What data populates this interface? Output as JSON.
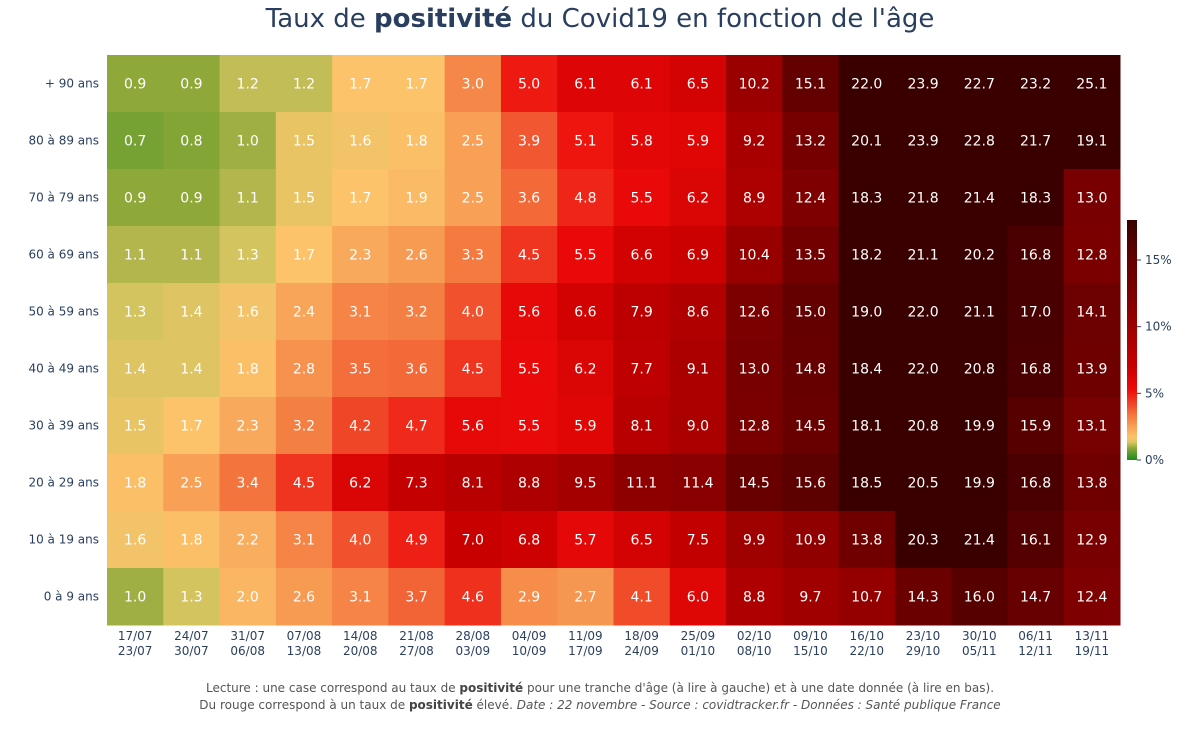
{
  "title": {
    "prefix": "Taux de ",
    "bold": "positivité",
    "suffix": " du Covid19 en fonction de l'âge"
  },
  "footer": {
    "line1_prefix": "Lecture : une case correspond au taux de ",
    "line1_bold": "positivité",
    "line1_suffix": " pour une tranche d'âge (à lire à gauche) et à une date donnée (à lire en bas).",
    "line2_prefix": "Du rouge correspond à un taux de ",
    "line2_bold": "positivité",
    "line2_mid": " élevé.  ",
    "line2_italic": "Date : 22 novembre - Source : covidtracker.fr - Données : Santé publique France"
  },
  "chart_data": {
    "type": "heatmap",
    "title": "Taux de positivité du Covid19 en fonction de l'âge",
    "x_categories": [
      [
        "17/07",
        "23/07"
      ],
      [
        "24/07",
        "30/07"
      ],
      [
        "31/07",
        "06/08"
      ],
      [
        "07/08",
        "13/08"
      ],
      [
        "14/08",
        "20/08"
      ],
      [
        "21/08",
        "27/08"
      ],
      [
        "28/08",
        "03/09"
      ],
      [
        "04/09",
        "10/09"
      ],
      [
        "11/09",
        "17/09"
      ],
      [
        "18/09",
        "24/09"
      ],
      [
        "25/09",
        "01/10"
      ],
      [
        "02/10",
        "08/10"
      ],
      [
        "09/10",
        "15/10"
      ],
      [
        "16/10",
        "22/10"
      ],
      [
        "23/10",
        "29/10"
      ],
      [
        "30/10",
        "05/11"
      ],
      [
        "06/11",
        "12/11"
      ],
      [
        "13/11",
        "19/11"
      ]
    ],
    "y_categories": [
      "+ 90 ans",
      "80 à 89 ans",
      "70 à 79 ans",
      "60 à 69 ans",
      "50 à 59 ans",
      "40 à 49 ans",
      "30 à 39 ans",
      "20 à 29 ans",
      "10 à 19 ans",
      "0 à 9 ans"
    ],
    "values": [
      [
        0.9,
        0.9,
        1.2,
        1.2,
        1.7,
        1.7,
        3.0,
        5.0,
        6.1,
        6.1,
        6.5,
        10.2,
        15.1,
        22.0,
        23.9,
        22.7,
        23.2,
        25.1
      ],
      [
        0.7,
        0.8,
        1.0,
        1.5,
        1.6,
        1.8,
        2.5,
        3.9,
        5.1,
        5.8,
        5.9,
        9.2,
        13.2,
        20.1,
        23.9,
        22.8,
        21.7,
        19.1
      ],
      [
        0.9,
        0.9,
        1.1,
        1.5,
        1.7,
        1.9,
        2.5,
        3.6,
        4.8,
        5.5,
        6.2,
        8.9,
        12.4,
        18.3,
        21.8,
        21.4,
        18.3,
        13.0
      ],
      [
        1.1,
        1.1,
        1.3,
        1.7,
        2.3,
        2.6,
        3.3,
        4.5,
        5.5,
        6.6,
        6.9,
        10.4,
        13.5,
        18.2,
        21.1,
        20.2,
        16.8,
        12.8
      ],
      [
        1.3,
        1.4,
        1.6,
        2.4,
        3.1,
        3.2,
        4.0,
        5.6,
        6.6,
        7.9,
        8.6,
        12.6,
        15.0,
        19.0,
        22.0,
        21.1,
        17.0,
        14.1
      ],
      [
        1.4,
        1.4,
        1.8,
        2.8,
        3.5,
        3.6,
        4.5,
        5.5,
        6.2,
        7.7,
        9.1,
        13.0,
        14.8,
        18.4,
        22.0,
        20.8,
        16.8,
        13.9
      ],
      [
        1.5,
        1.7,
        2.3,
        3.2,
        4.2,
        4.7,
        5.6,
        5.5,
        5.9,
        8.1,
        9.0,
        12.8,
        14.5,
        18.1,
        20.8,
        19.9,
        15.9,
        13.1
      ],
      [
        1.8,
        2.5,
        3.4,
        4.5,
        6.2,
        7.3,
        8.1,
        8.8,
        9.5,
        11.1,
        11.4,
        14.5,
        15.6,
        18.5,
        20.5,
        19.9,
        16.8,
        13.8
      ],
      [
        1.6,
        1.8,
        2.2,
        3.1,
        4.0,
        4.9,
        7.0,
        6.8,
        5.7,
        6.5,
        7.5,
        9.9,
        10.9,
        13.8,
        20.3,
        21.4,
        16.1,
        12.9
      ],
      [
        1.0,
        1.3,
        2.0,
        2.6,
        3.1,
        3.7,
        4.6,
        2.9,
        2.7,
        4.1,
        6.0,
        8.8,
        9.7,
        10.7,
        14.3,
        16.0,
        14.7,
        12.4
      ]
    ],
    "colorscale": {
      "zmin": 0,
      "zmax": 18,
      "ticks": [
        {
          "value": 0,
          "label": "0%"
        },
        {
          "value": 5,
          "label": "5%"
        },
        {
          "value": 10,
          "label": "10%"
        },
        {
          "value": 15,
          "label": "15%"
        }
      ],
      "stops": [
        {
          "value": 0,
          "color": "#1a8b1a"
        },
        {
          "value": 0.9,
          "color": "#8fa83a"
        },
        {
          "value": 1.3,
          "color": "#d4c460"
        },
        {
          "value": 1.7,
          "color": "#fcc36a"
        },
        {
          "value": 2.5,
          "color": "#f7a056"
        },
        {
          "value": 3.3,
          "color": "#f47a40"
        },
        {
          "value": 4.3,
          "color": "#ef4025"
        },
        {
          "value": 5.3,
          "color": "#ee0a0a"
        },
        {
          "value": 7.0,
          "color": "#c90000"
        },
        {
          "value": 9.5,
          "color": "#a40000"
        },
        {
          "value": 12.0,
          "color": "#820000"
        },
        {
          "value": 15.0,
          "color": "#640000"
        },
        {
          "value": 18.0,
          "color": "#3a0000"
        }
      ]
    }
  }
}
